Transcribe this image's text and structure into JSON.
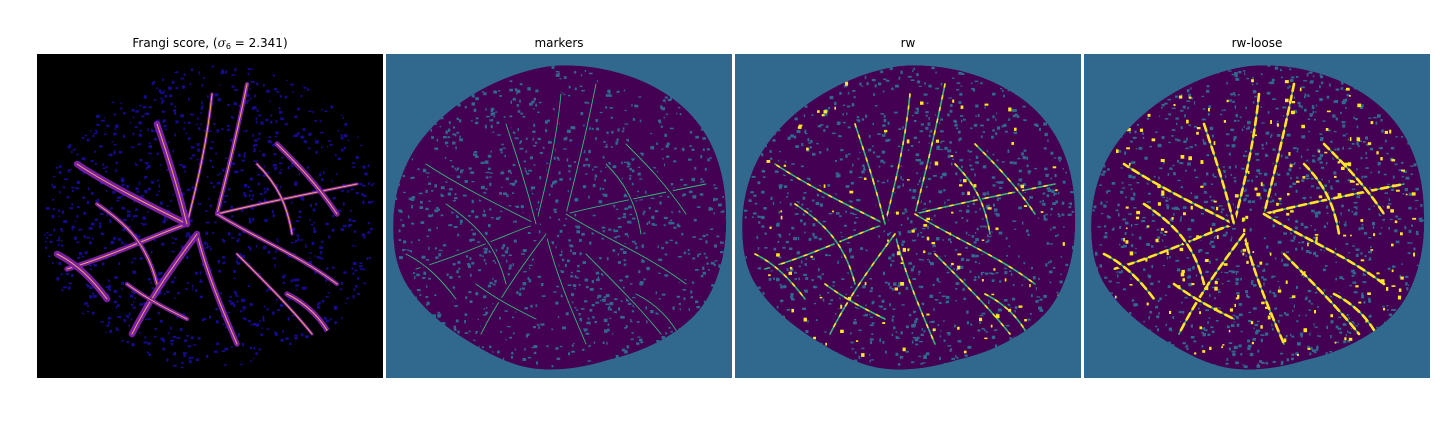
{
  "panels": [
    {
      "id": "frangi",
      "title_prefix": "Frangi score, (",
      "title_symbol": "σ",
      "title_subscript": "6",
      "title_suffix": " = 2.341)",
      "background_color": "#000000"
    },
    {
      "id": "markers",
      "title": "markers",
      "background_color": "#30688e"
    },
    {
      "id": "rw",
      "title": "rw",
      "background_color": "#30688e"
    },
    {
      "id": "rw-loose",
      "title": "rw-loose",
      "background_color": "#30688e"
    }
  ],
  "colors": {
    "frangi_tissue": "#160a8c",
    "frangi_vessel_mid": "#7a1fa3",
    "frangi_vessel_hot": "#f0a060",
    "label_tissue": "#440154",
    "label_marker": "#35b779",
    "label_highlight": "#fde725"
  }
}
